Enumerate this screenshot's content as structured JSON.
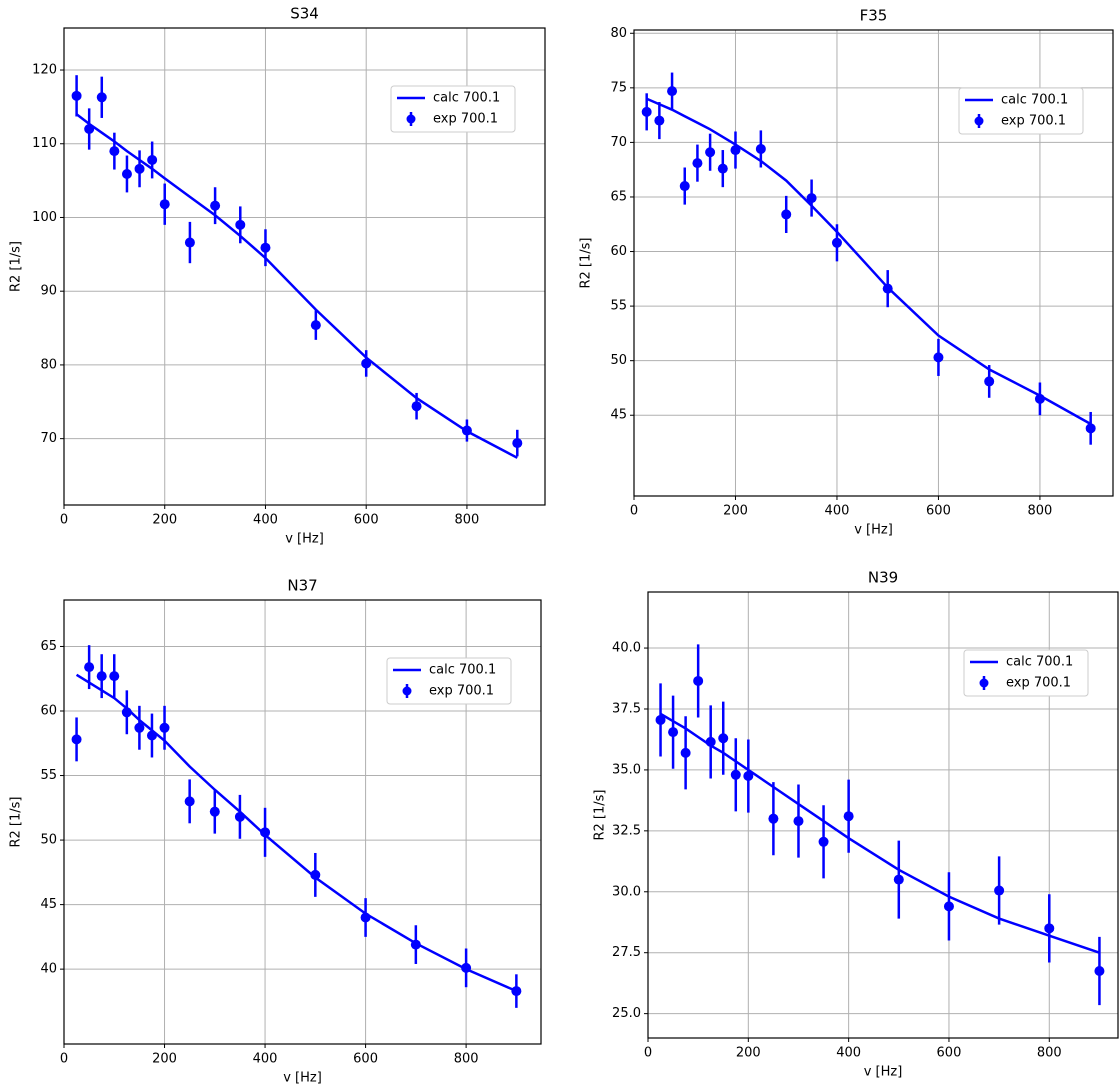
{
  "chart_data": [
    {
      "type": "errorbar",
      "title": "S34",
      "xlabel": "v [Hz]",
      "ylabel": "R2 [1/s]",
      "x": [
        25,
        50,
        75,
        100,
        125,
        150,
        175,
        200,
        250,
        300,
        350,
        400,
        500,
        600,
        700,
        800,
        900
      ],
      "series": [
        {
          "name": "calc 700.1",
          "color": "#0000ff",
          "values": [
            114,
            112.7,
            111.5,
            110.3,
            109,
            107.8,
            106.6,
            105.3,
            102.8,
            100.3,
            97.5,
            94.5,
            87.5,
            81,
            75.5,
            71,
            67.4
          ]
        },
        {
          "name": "exp 700.1",
          "color": "#0000ff",
          "values": [
            116.5,
            112,
            116.3,
            109,
            105.9,
            106.6,
            107.8,
            101.8,
            96.6,
            101.6,
            99,
            95.9,
            85.4,
            80.2,
            74.4,
            71.1,
            69.4
          ],
          "errors": [
            2.8,
            2.8,
            2.8,
            2.5,
            2.5,
            2.5,
            2.5,
            2.8,
            2.8,
            2.5,
            2.5,
            2.5,
            2,
            1.8,
            1.8,
            1.5,
            1.8
          ]
        }
      ],
      "xlim": [
        0,
        955
      ],
      "xticks": [
        0,
        200,
        400,
        600,
        800
      ],
      "ylim": [
        61,
        125.7
      ],
      "yticks": [
        70,
        80,
        90,
        100,
        110,
        120
      ],
      "grid": true,
      "legend": "upper right"
    },
    {
      "type": "errorbar",
      "title": "F35",
      "xlabel": "v [Hz]",
      "ylabel": "R2 [1/s]",
      "x": [
        25,
        50,
        75,
        100,
        125,
        150,
        175,
        200,
        250,
        300,
        350,
        400,
        500,
        600,
        700,
        800,
        900
      ],
      "series": [
        {
          "name": "calc 700.1",
          "color": "#0000ff",
          "values": [
            74,
            73.5,
            73,
            72.4,
            71.8,
            71.2,
            70.5,
            69.8,
            68.3,
            66.5,
            64.2,
            61.8,
            56.7,
            52.3,
            49.2,
            46.8,
            44.2
          ]
        },
        {
          "name": "exp 700.1",
          "color": "#0000ff",
          "values": [
            72.8,
            72,
            74.7,
            66,
            68.1,
            69.1,
            67.6,
            69.3,
            69.4,
            63.4,
            64.9,
            60.8,
            56.6,
            50.3,
            48.1,
            46.5,
            43.8
          ],
          "errors": [
            1.7,
            1.7,
            1.7,
            1.7,
            1.7,
            1.7,
            1.7,
            1.7,
            1.7,
            1.7,
            1.7,
            1.7,
            1.7,
            1.7,
            1.5,
            1.5,
            1.5
          ]
        }
      ],
      "xlim": [
        0,
        944
      ],
      "xticks": [
        0,
        200,
        400,
        600,
        800
      ],
      "ylim": [
        37.6,
        80.3
      ],
      "yticks": [
        45,
        50,
        55,
        60,
        65,
        70,
        75,
        80
      ],
      "grid": true,
      "legend": "upper right"
    },
    {
      "type": "errorbar",
      "title": "N37",
      "xlabel": "v [Hz]",
      "ylabel": "R2 [1/s]",
      "x": [
        25,
        50,
        75,
        100,
        125,
        150,
        175,
        200,
        250,
        300,
        350,
        400,
        500,
        600,
        700,
        800,
        900
      ],
      "series": [
        {
          "name": "calc 700.1",
          "color": "#0000ff",
          "values": [
            62.8,
            62.2,
            61.6,
            61,
            60.2,
            59.3,
            58.5,
            57.7,
            55.7,
            53.9,
            52.2,
            50.4,
            47.1,
            44.3,
            42,
            40,
            38.3
          ]
        },
        {
          "name": "exp 700.1",
          "color": "#0000ff",
          "values": [
            57.8,
            63.4,
            62.7,
            62.7,
            59.9,
            58.7,
            58.1,
            58.7,
            53,
            52.2,
            51.8,
            50.6,
            47.3,
            44,
            41.9,
            40.1,
            38.3
          ],
          "errors": [
            1.7,
            1.7,
            1.7,
            1.7,
            1.7,
            1.7,
            1.7,
            1.7,
            1.7,
            1.7,
            1.7,
            1.9,
            1.7,
            1.5,
            1.5,
            1.5,
            1.3
          ]
        }
      ],
      "xlim": [
        0,
        949
      ],
      "xticks": [
        0,
        200,
        400,
        600,
        800
      ],
      "ylim": [
        34.2,
        68.6
      ],
      "yticks": [
        40,
        45,
        50,
        55,
        60,
        65
      ],
      "grid": true,
      "legend": "upper right"
    },
    {
      "type": "errorbar",
      "title": "N39",
      "xlabel": "v [Hz]",
      "ylabel": "R2 [1/s]",
      "x": [
        25,
        50,
        75,
        100,
        125,
        150,
        175,
        200,
        250,
        300,
        350,
        400,
        500,
        600,
        700,
        800,
        900
      ],
      "series": [
        {
          "name": "calc 700.1",
          "color": "#0000ff",
          "values": [
            37.3,
            37,
            36.7,
            36.35,
            36,
            35.7,
            35.35,
            35,
            34.3,
            33.6,
            32.9,
            32.2,
            30.9,
            29.8,
            28.9,
            28.2,
            27.5
          ]
        },
        {
          "name": "exp 700.1",
          "color": "#0000ff",
          "values": [
            37.05,
            36.55,
            35.7,
            38.65,
            36.15,
            36.3,
            34.8,
            34.75,
            33,
            32.9,
            32.05,
            33.1,
            30.5,
            29.4,
            30.05,
            28.5,
            26.75
          ],
          "errors": [
            1.5,
            1.5,
            1.5,
            1.5,
            1.5,
            1.5,
            1.5,
            1.5,
            1.5,
            1.5,
            1.5,
            1.5,
            1.6,
            1.4,
            1.4,
            1.4,
            1.4
          ]
        }
      ],
      "xlim": [
        0,
        937
      ],
      "xticks": [
        0,
        200,
        400,
        600,
        800
      ],
      "ylim": [
        24,
        42.3
      ],
      "yticks": [
        {
          "value": 25,
          "label": "25.0"
        },
        27.5,
        {
          "value": 30,
          "label": "30.0"
        },
        32.5,
        {
          "value": 35,
          "label": "35.0"
        },
        37.5,
        {
          "value": 40,
          "label": "40.0"
        }
      ],
      "grid": true,
      "legend": "upper right"
    }
  ]
}
